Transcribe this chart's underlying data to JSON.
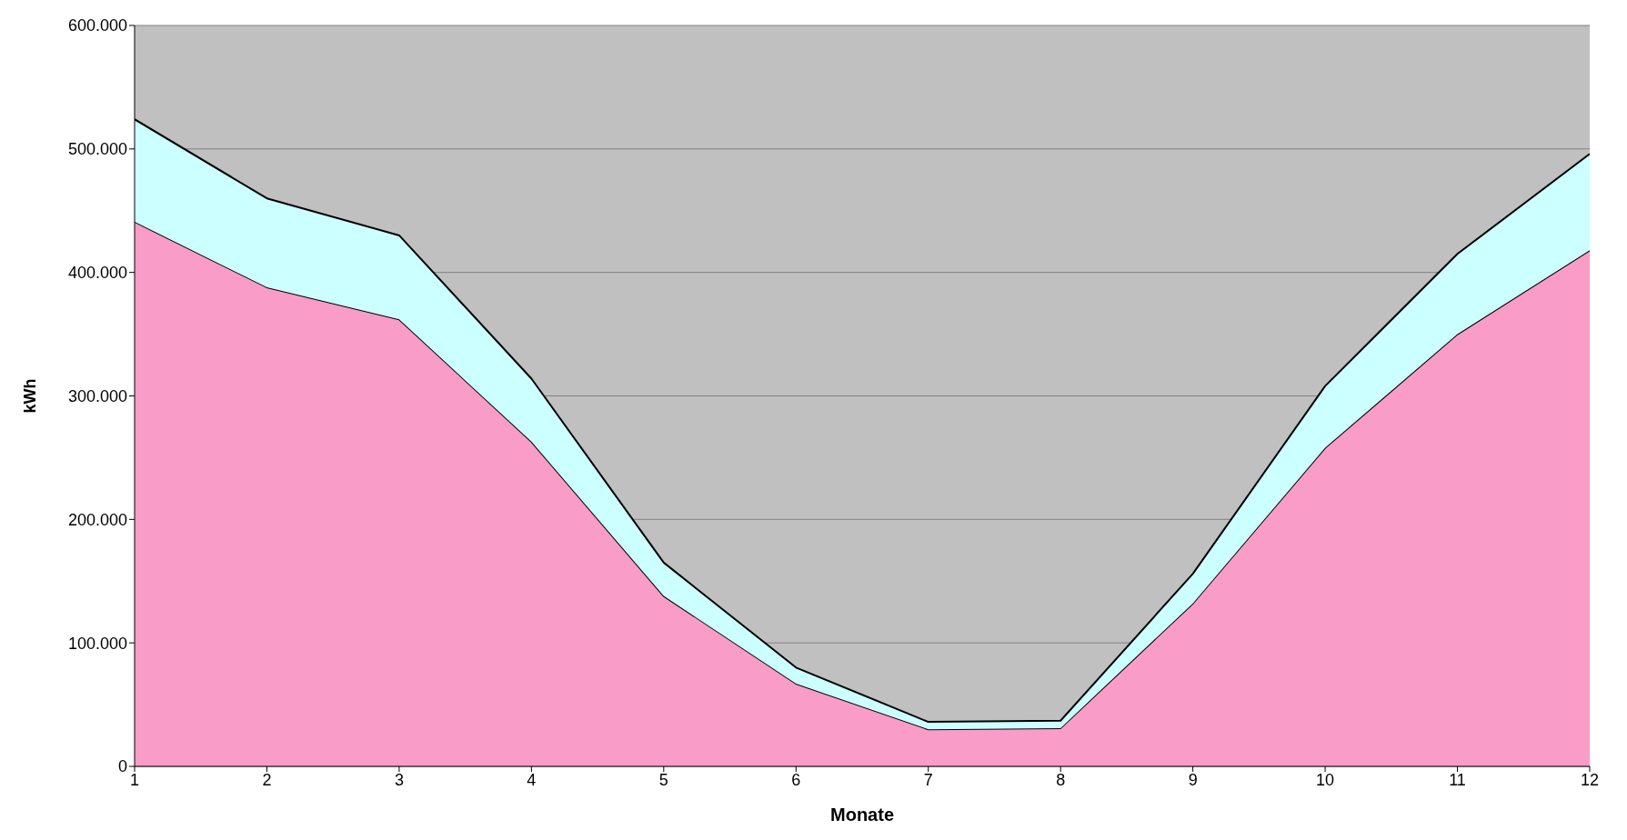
{
  "chart_data": {
    "type": "area",
    "xlabel": "Monate",
    "ylabel": "kWh",
    "stacked": true,
    "grid": "y",
    "legend": false,
    "x": [
      1,
      2,
      3,
      4,
      5,
      6,
      7,
      8,
      9,
      10,
      11,
      12
    ],
    "series": [
      {
        "color": "#fa9cc8",
        "values": [
          441000,
          388000,
          362000,
          263000,
          138000,
          67000,
          30000,
          31000,
          132000,
          258000,
          350000,
          418000
        ]
      },
      {
        "color": "#ccffff",
        "values": [
          83000,
          72000,
          68000,
          51000,
          27000,
          13000,
          6000,
          6000,
          24000,
          50000,
          65000,
          78000
        ]
      }
    ],
    "xlim": [
      1,
      12
    ],
    "xticks": [
      1,
      2,
      3,
      4,
      5,
      6,
      7,
      8,
      9,
      10,
      11,
      12
    ],
    "ylim": [
      0,
      600000
    ],
    "yticks": [
      0,
      {
        "value": 100000,
        "label": "100.000"
      },
      {
        "value": 200000,
        "label": "200.000"
      },
      {
        "value": 300000,
        "label": "300.000"
      },
      {
        "value": 400000,
        "label": "400.000"
      },
      {
        "value": 500000,
        "label": "500.000"
      },
      {
        "value": 600000,
        "label": "600.000"
      }
    ]
  }
}
